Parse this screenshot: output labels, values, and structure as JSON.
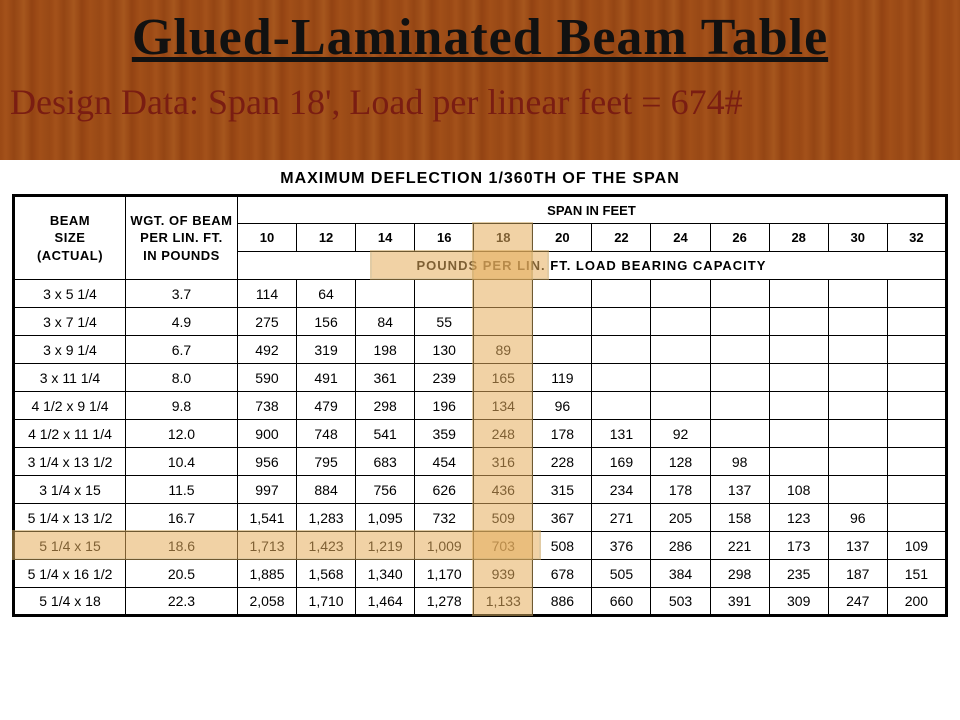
{
  "header": {
    "title": "Glued-Laminated Beam Table",
    "subtitle": "Design Data:  Span 18', Load per linear feet = 674#"
  },
  "deflection_note": "MAXIMUM DEFLECTION 1/360TH OF THE SPAN",
  "columns": {
    "beam_size": "BEAM\nSIZE\n(ACTUAL)",
    "weight": "WGT. OF BEAM\nPER LIN. FT.\nIN POUNDS",
    "span_header": "SPAN IN FEET",
    "capacity_label": "POUNDS PER LIN. FT. LOAD BEARING CAPACITY",
    "spans": [
      "10",
      "12",
      "14",
      "16",
      "18",
      "20",
      "22",
      "24",
      "26",
      "28",
      "30",
      "32"
    ]
  },
  "rows": [
    {
      "size": "3 x 5 1/4",
      "wgt": "3.7",
      "v": [
        "114",
        "64",
        "",
        "",
        "",
        "",
        "",
        "",
        "",
        "",
        "",
        ""
      ]
    },
    {
      "size": "3 x 7 1/4",
      "wgt": "4.9",
      "v": [
        "275",
        "156",
        "84",
        "55",
        "",
        "",
        "",
        "",
        "",
        "",
        "",
        ""
      ]
    },
    {
      "size": "3 x 9 1/4",
      "wgt": "6.7",
      "v": [
        "492",
        "319",
        "198",
        "130",
        "89",
        "",
        "",
        "",
        "",
        "",
        "",
        ""
      ]
    },
    {
      "size": "3 x 11 1/4",
      "wgt": "8.0",
      "v": [
        "590",
        "491",
        "361",
        "239",
        "165",
        "119",
        "",
        "",
        "",
        "",
        "",
        ""
      ]
    },
    {
      "size": "4 1/2 x 9 1/4",
      "wgt": "9.8",
      "v": [
        "738",
        "479",
        "298",
        "196",
        "134",
        "96",
        "",
        "",
        "",
        "",
        "",
        ""
      ]
    },
    {
      "size": "4 1/2 x 11 1/4",
      "wgt": "12.0",
      "v": [
        "900",
        "748",
        "541",
        "359",
        "248",
        "178",
        "131",
        "92",
        "",
        "",
        "",
        ""
      ]
    },
    {
      "size": "3 1/4 x 13 1/2",
      "wgt": "10.4",
      "v": [
        "956",
        "795",
        "683",
        "454",
        "316",
        "228",
        "169",
        "128",
        "98",
        "",
        "",
        ""
      ]
    },
    {
      "size": "3 1/4 x 15",
      "wgt": "11.5",
      "v": [
        "997",
        "884",
        "756",
        "626",
        "436",
        "315",
        "234",
        "178",
        "137",
        "108",
        "",
        ""
      ]
    },
    {
      "size": "5 1/4 x 13 1/2",
      "wgt": "16.7",
      "v": [
        "1,541",
        "1,283",
        "1,095",
        "732",
        "509",
        "367",
        "271",
        "205",
        "158",
        "123",
        "96",
        ""
      ]
    },
    {
      "size": "5 1/4 x 15",
      "wgt": "18.6",
      "v": [
        "1,713",
        "1,423",
        "1,219",
        "1,009",
        "703",
        "508",
        "376",
        "286",
        "221",
        "173",
        "137",
        "109"
      ]
    },
    {
      "size": "5 1/4 x 16 1/2",
      "wgt": "20.5",
      "v": [
        "1,885",
        "1,568",
        "1,340",
        "1,170",
        "939",
        "678",
        "505",
        "384",
        "298",
        "235",
        "187",
        "151"
      ]
    },
    {
      "size": "5 1/4 x 18",
      "wgt": "22.3",
      "v": [
        "2,058",
        "1,710",
        "1,464",
        "1,278",
        "1,133",
        "886",
        "660",
        "503",
        "391",
        "309",
        "247",
        "200"
      ]
    }
  ],
  "highlight": {
    "col_index": 4,
    "row_index": 9,
    "colors": {
      "fill": "#e6ae5d",
      "border": "#caa25a",
      "opacity": 0.55
    }
  },
  "style": {
    "wood_bg": "#c48748",
    "title_color": "#111111",
    "subtitle_color": "#7a1d12",
    "table_border": "#000000",
    "page_bg": "#ffffff",
    "fonts": {
      "title_family": "Times New Roman",
      "title_size_pt": 39,
      "subtitle_size_pt": 27,
      "table_size_pt": 10.5
    }
  }
}
